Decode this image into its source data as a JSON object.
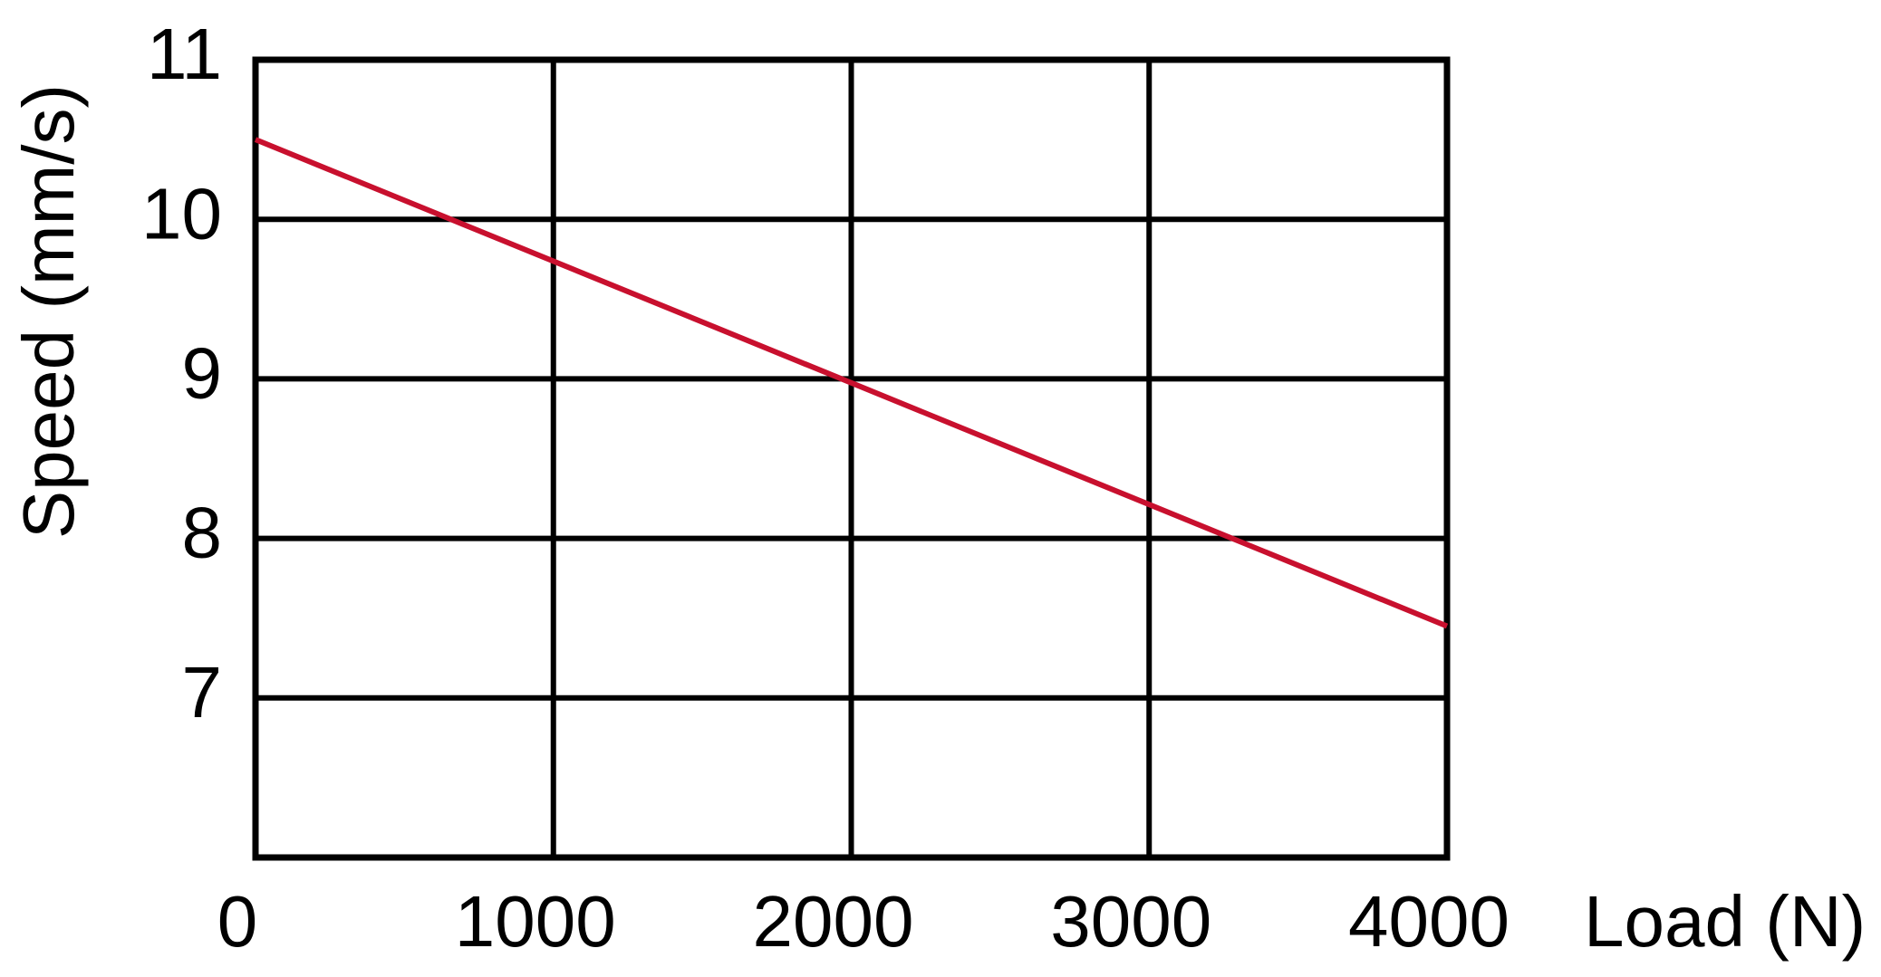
{
  "chart_data": {
    "type": "line",
    "x_label": "Load (N)",
    "y_label": "Speed (mm/s)",
    "x": [
      0,
      4000
    ],
    "series": [
      {
        "name": "Speed",
        "color": "#c8102e",
        "values": [
          10.5,
          7.45
        ]
      }
    ],
    "xlim": [
      0,
      4000
    ],
    "xticks": [
      0,
      1000,
      2000,
      3000,
      4000
    ],
    "ylim": [
      6,
      11
    ],
    "yticks": [
      7,
      8,
      9,
      10,
      11
    ],
    "grid": true
  }
}
